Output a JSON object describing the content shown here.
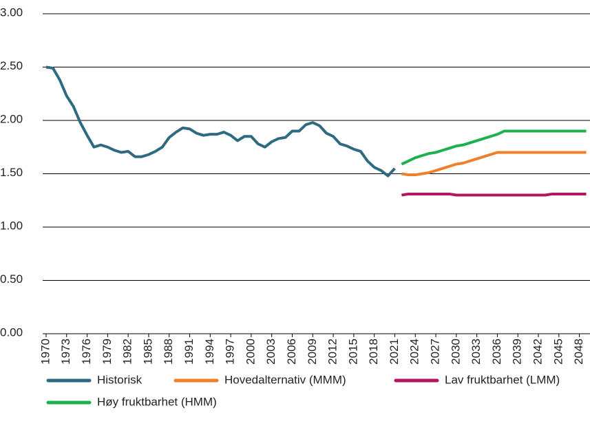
{
  "chart_data": {
    "type": "line",
    "x": [
      1970,
      1971,
      1972,
      1973,
      1974,
      1975,
      1976,
      1977,
      1978,
      1979,
      1980,
      1981,
      1982,
      1983,
      1984,
      1985,
      1986,
      1987,
      1988,
      1989,
      1990,
      1991,
      1992,
      1993,
      1994,
      1995,
      1996,
      1997,
      1998,
      1999,
      2000,
      2001,
      2002,
      2003,
      2004,
      2005,
      2006,
      2007,
      2008,
      2009,
      2010,
      2011,
      2012,
      2013,
      2014,
      2015,
      2016,
      2017,
      2018,
      2019,
      2020,
      2021,
      2022,
      2023,
      2024,
      2025,
      2026,
      2027,
      2028,
      2029,
      2030,
      2031,
      2032,
      2033,
      2034,
      2035,
      2036,
      2037,
      2038,
      2039,
      2040,
      2041,
      2042,
      2043,
      2044,
      2045,
      2046,
      2047,
      2048,
      2049
    ],
    "series": [
      {
        "name": "Historisk",
        "color": "#2e6b80",
        "values": [
          2.5,
          2.49,
          2.38,
          2.23,
          2.13,
          1.98,
          1.86,
          1.75,
          1.77,
          1.75,
          1.72,
          1.7,
          1.71,
          1.66,
          1.66,
          1.68,
          1.71,
          1.75,
          1.84,
          1.89,
          1.93,
          1.92,
          1.88,
          1.86,
          1.87,
          1.87,
          1.89,
          1.86,
          1.81,
          1.85,
          1.85,
          1.78,
          1.75,
          1.8,
          1.83,
          1.84,
          1.9,
          1.9,
          1.96,
          1.98,
          1.95,
          1.88,
          1.85,
          1.78,
          1.76,
          1.73,
          1.71,
          1.62,
          1.56,
          1.53,
          1.48,
          1.55,
          null,
          null,
          null,
          null,
          null,
          null,
          null,
          null,
          null,
          null,
          null,
          null,
          null,
          null,
          null,
          null,
          null,
          null,
          null,
          null,
          null,
          null,
          null,
          null,
          null,
          null,
          null,
          null
        ]
      },
      {
        "name": "Hovedalternativ (MMM)",
        "color": "#f07f2a",
        "values": [
          null,
          null,
          null,
          null,
          null,
          null,
          null,
          null,
          null,
          null,
          null,
          null,
          null,
          null,
          null,
          null,
          null,
          null,
          null,
          null,
          null,
          null,
          null,
          null,
          null,
          null,
          null,
          null,
          null,
          null,
          null,
          null,
          null,
          null,
          null,
          null,
          null,
          null,
          null,
          null,
          null,
          null,
          null,
          null,
          null,
          null,
          null,
          null,
          null,
          null,
          null,
          null,
          1.5,
          1.49,
          1.49,
          1.5,
          1.51,
          1.53,
          1.55,
          1.57,
          1.59,
          1.6,
          1.62,
          1.64,
          1.66,
          1.68,
          1.7,
          1.7,
          1.7,
          1.7,
          1.7,
          1.7,
          1.7,
          1.7,
          1.7,
          1.7,
          1.7,
          1.7,
          1.7,
          1.7
        ]
      },
      {
        "name": "Lav fruktbarhet (LMM)",
        "color": "#b5145f",
        "values": [
          null,
          null,
          null,
          null,
          null,
          null,
          null,
          null,
          null,
          null,
          null,
          null,
          null,
          null,
          null,
          null,
          null,
          null,
          null,
          null,
          null,
          null,
          null,
          null,
          null,
          null,
          null,
          null,
          null,
          null,
          null,
          null,
          null,
          null,
          null,
          null,
          null,
          null,
          null,
          null,
          null,
          null,
          null,
          null,
          null,
          null,
          null,
          null,
          null,
          null,
          null,
          null,
          1.3,
          1.31,
          1.31,
          1.31,
          1.31,
          1.31,
          1.31,
          1.31,
          1.3,
          1.3,
          1.3,
          1.3,
          1.3,
          1.3,
          1.3,
          1.3,
          1.3,
          1.3,
          1.3,
          1.3,
          1.3,
          1.3,
          1.31,
          1.31,
          1.31,
          1.31,
          1.31,
          1.31
        ]
      },
      {
        "name": "Høy fruktbarhet (HMM)",
        "color": "#1db04d",
        "values": [
          null,
          null,
          null,
          null,
          null,
          null,
          null,
          null,
          null,
          null,
          null,
          null,
          null,
          null,
          null,
          null,
          null,
          null,
          null,
          null,
          null,
          null,
          null,
          null,
          null,
          null,
          null,
          null,
          null,
          null,
          null,
          null,
          null,
          null,
          null,
          null,
          null,
          null,
          null,
          null,
          null,
          null,
          null,
          null,
          null,
          null,
          null,
          null,
          null,
          null,
          null,
          null,
          1.59,
          1.62,
          1.65,
          1.67,
          1.69,
          1.7,
          1.72,
          1.74,
          1.76,
          1.77,
          1.79,
          1.81,
          1.83,
          1.85,
          1.87,
          1.9,
          1.9,
          1.9,
          1.9,
          1.9,
          1.9,
          1.9,
          1.9,
          1.9,
          1.9,
          1.9,
          1.9,
          1.9
        ]
      }
    ],
    "xlim": [
      1969.5,
      2049.55
    ],
    "xticks": [
      1970,
      1973,
      1976,
      1979,
      1982,
      1985,
      1988,
      1991,
      1994,
      1997,
      2000,
      2003,
      2006,
      2009,
      2012,
      2015,
      2018,
      2021,
      2024,
      2027,
      2030,
      2033,
      2036,
      2039,
      2042,
      2045,
      2048
    ],
    "ylim": [
      0,
      3
    ],
    "yticks": [
      {
        "value": 0,
        "label": "0.00"
      },
      {
        "value": 0.5,
        "label": "0.50"
      },
      {
        "value": 1,
        "label": "1.00"
      },
      {
        "value": 1.5,
        "label": "1.50"
      },
      {
        "value": 2,
        "label": "2.00"
      },
      {
        "value": 2.5,
        "label": "2.50"
      },
      {
        "value": 3,
        "label": "3.00"
      }
    ],
    "grid": true
  }
}
